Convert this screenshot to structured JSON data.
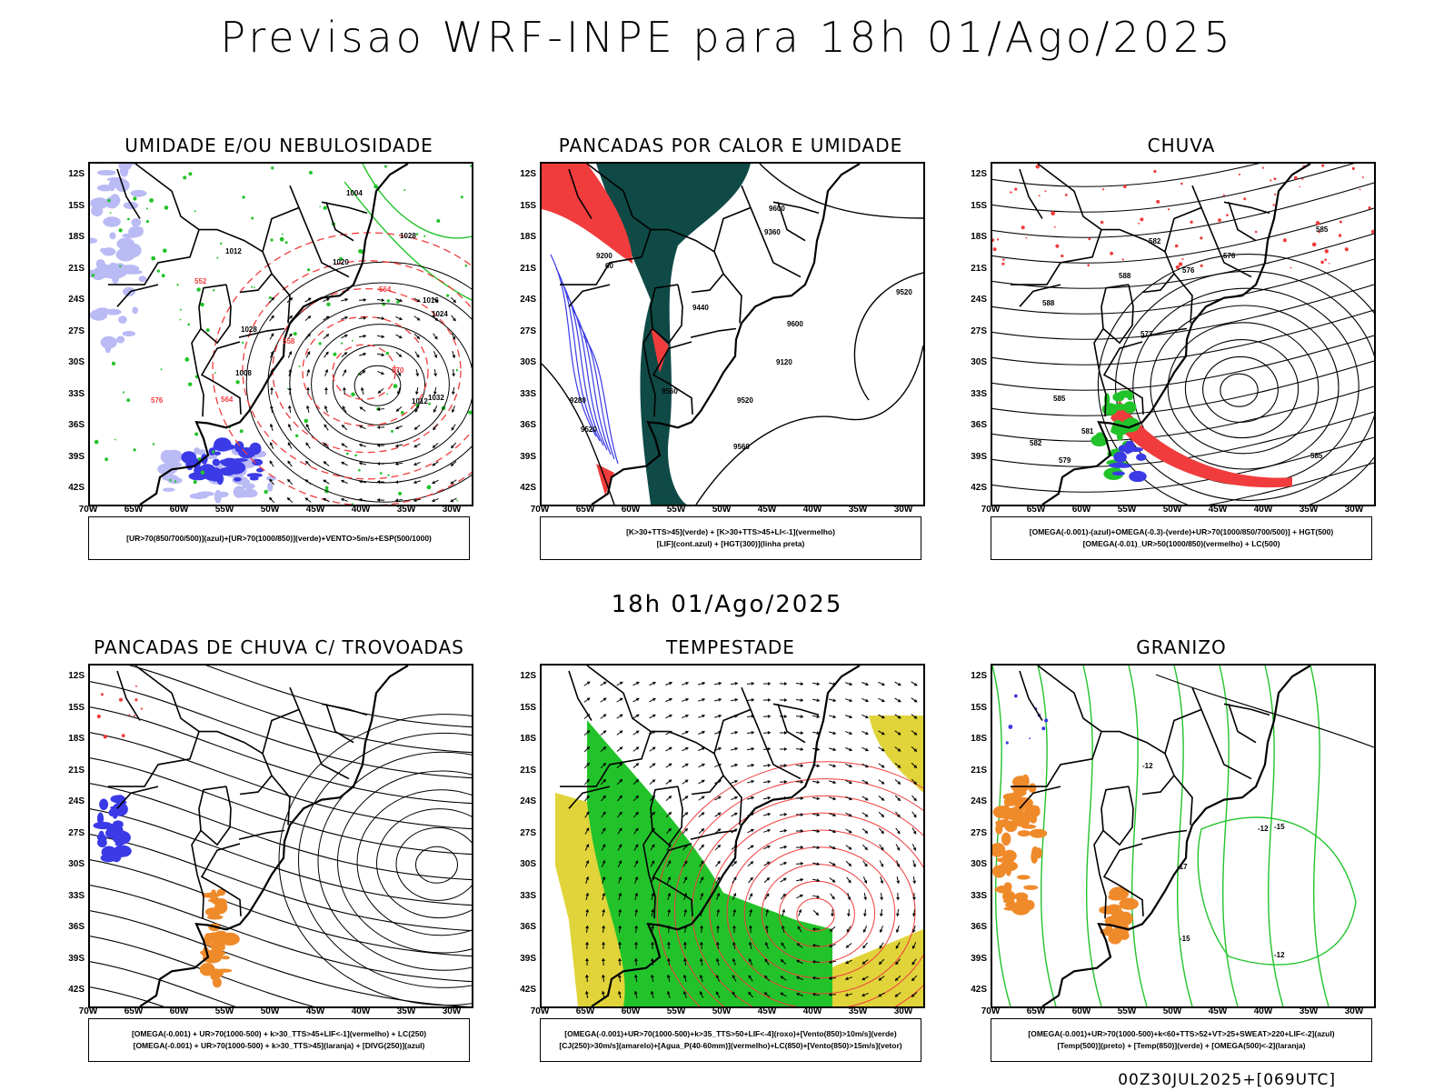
{
  "title": "Previsao WRF-INPE  para 18h 01/Ago/2025",
  "mid_time": "18h 01/Ago/2025",
  "footer": "00Z30JUL2025+[069UTC]",
  "lat_ticks": [
    "12S",
    "15S",
    "18S",
    "21S",
    "24S",
    "27S",
    "30S",
    "33S",
    "36S",
    "39S",
    "42S"
  ],
  "lon_ticks": [
    "70W",
    "65W",
    "60W",
    "55W",
    "50W",
    "45W",
    "40W",
    "35W",
    "30W"
  ],
  "colors": {
    "red": "#f03c3c",
    "green": "#22c32a",
    "blue": "#3a3ae6",
    "lightblue": "#b3b3f5",
    "darkteal": "#0f4a46",
    "yellow": "#e0d43a",
    "orange": "#ef8a2a"
  },
  "panels": [
    {
      "id": "umidade",
      "title": "UMIDADE E/OU NEBULOSIDADE",
      "legend": [
        "[UR>70(850/700/500)](azul)+[UR>70(1000/850)](verde)+VENTO>5m/s+ESP(500/1000)"
      ],
      "labels": [
        "1012",
        "1016",
        "1020",
        "1024",
        "1028",
        "1032",
        "1008",
        "1004",
        "1012",
        "1028",
        "552",
        "570",
        "564",
        "564",
        "576",
        "558"
      ]
    },
    {
      "id": "pancadas_calor",
      "title": "PANCADAS POR CALOR E UMIDADE",
      "legend": [
        "[K>30+TTS>45](verde) + [K>30+TTS>45+LI<-1](vermelho)",
        "[LIF](cont.azul) + [HGT(300)](linha preta)"
      ],
      "labels": [
        "9600",
        "9560",
        "9560",
        "9600",
        "9520",
        "9520",
        "9440",
        "9360",
        "9280",
        "9200",
        "9120",
        "9520",
        "60"
      ]
    },
    {
      "id": "chuva",
      "title": "CHUVA",
      "legend": [
        "[OMEGA(-0.001)-(azul)+OMEGA(-0.3)-(verde)+UR>70(1000/850/700/500)] + HGT(500)",
        "[OMEGA(-0.01)_UR>50(1000/850)(vermelho) + LC(500)"
      ],
      "labels": [
        "585",
        "588",
        "585",
        "573",
        "576",
        "579",
        "582",
        "576",
        "585",
        "588",
        "582",
        "581"
      ]
    },
    {
      "id": "trovoadas",
      "title": "PANCADAS DE CHUVA C/ TROVOADAS",
      "legend": [
        "[OMEGA(-0.001) + UR>70(1000-500) + k>30_TTS>45+LIF<-1](vermelho) + LC(250)",
        "[OMEGA(-0.001) + UR>70(1000-500) + k>30_TTS>45](laranja) + [DIVG(250)](azul)"
      ],
      "labels": []
    },
    {
      "id": "tempestade",
      "title": "TEMPESTADE",
      "legend": [
        "[OMEGA(-0.001)+UR>70(1000-500)+k>35_TTS>50+LIF<-4](roxo)+[Vento(850)>10m/s](verde)",
        "[CJ(250)>30m/s](amarelo)+[Agua_P(40-60mm)](vermelho)+LC(850)+[Vento(850)>15m/s](vetor)"
      ],
      "labels": []
    },
    {
      "id": "granizo",
      "title": "GRANIZO",
      "legend": [
        "[OMEGA(-0.001)+UR>70(1000-500)+k<60+TTS>52+VT>25+SWEAT>220+LIF<-2](azul)",
        "[Temp(500)](preto) + [Temp(850)](verde) + [OMEGA(500)<-2](laranja)"
      ],
      "labels": [
        "-12",
        "-12",
        "-15",
        "-17",
        "-15",
        "-12"
      ]
    }
  ]
}
